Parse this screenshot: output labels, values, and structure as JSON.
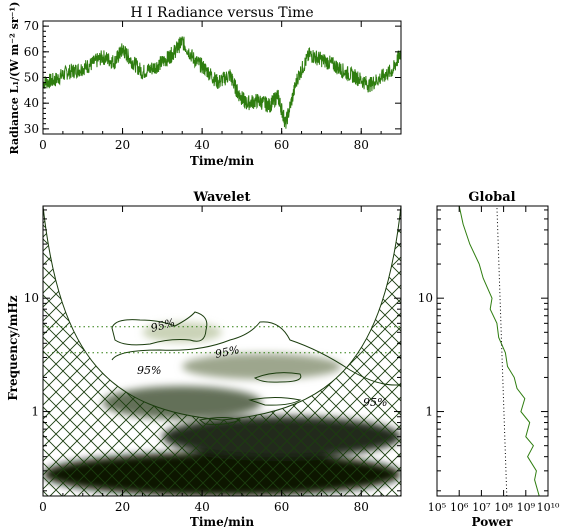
{
  "chart_data": [
    {
      "type": "line",
      "title": "H I Radiance versus Time",
      "xlabel": "Time/min",
      "ylabel": "Radiance L₁/(W m⁻² sr⁻¹)",
      "xlim": [
        0,
        90
      ],
      "ylim": [
        28,
        72
      ],
      "xticks": [
        "0",
        "20",
        "40",
        "60",
        "80"
      ],
      "yticks": [
        "30",
        "40",
        "50",
        "60",
        "70"
      ],
      "color": "#2e7d0f",
      "series": [
        {
          "x": [
            0,
            3,
            6,
            9,
            12,
            15,
            18,
            20,
            22,
            25,
            28,
            31,
            33,
            35,
            38,
            41,
            44,
            47,
            49,
            51,
            54,
            57,
            59,
            61,
            64,
            67,
            70,
            73,
            76,
            79,
            82,
            85,
            88,
            90
          ],
          "values": [
            48,
            49,
            52,
            53,
            55,
            58,
            56,
            61,
            57,
            52,
            54,
            57,
            60,
            64,
            57,
            53,
            48,
            51,
            44,
            40,
            41,
            39,
            43,
            32,
            50,
            59,
            57,
            55,
            52,
            50,
            47,
            50,
            53,
            60
          ]
        }
      ]
    },
    {
      "type": "heatmap",
      "title": "Wavelet",
      "xlabel": "Time/min",
      "ylabel": "Frequency/mHz",
      "xlim": [
        0,
        90
      ],
      "ylim": [
        0.18,
        65
      ],
      "log_y": true,
      "xticks": [
        "0",
        "20",
        "40",
        "60",
        "80"
      ],
      "yticks": [
        "1",
        "10"
      ],
      "significance_label": "95%",
      "color": "#2e7d0f",
      "reference_lines_mHz": [
        5.6,
        3.3
      ],
      "power_bands": [
        {
          "freq_mHz": 0.28,
          "t_start": 0,
          "t_end": 90,
          "level": 1.0
        },
        {
          "freq_mHz": 0.6,
          "t_start": 30,
          "t_end": 90,
          "level": 0.9
        },
        {
          "freq_mHz": 1.2,
          "t_start": 15,
          "t_end": 55,
          "level": 0.6
        },
        {
          "freq_mHz": 2.5,
          "t_start": 35,
          "t_end": 75,
          "level": 0.35
        },
        {
          "freq_mHz": 5.0,
          "t_start": 25,
          "t_end": 45,
          "level": 0.15
        }
      ]
    },
    {
      "type": "line",
      "title": "Global",
      "xlabel": "Power",
      "xlim": [
        100000,
        10000000000
      ],
      "log_x": true,
      "xticks": [
        "10⁵",
        "10⁶",
        "10⁷",
        "10⁸",
        "10⁹",
        "10¹⁰"
      ],
      "yticks": [
        "1",
        "10"
      ],
      "color": "#2e7d0f",
      "series": [
        {
          "freq_mHz": [
            0.18,
            0.25,
            0.3,
            0.4,
            0.5,
            0.6,
            0.8,
            1.0,
            1.3,
            1.6,
            2.0,
            2.5,
            3.3,
            4.5,
            6,
            8,
            10,
            15,
            20,
            30,
            45,
            65
          ],
          "power": [
            4000000000.0,
            2500000000.0,
            3000000000.0,
            1200000000.0,
            2200000000.0,
            1000000000.0,
            1500000000.0,
            600000000.0,
            900000000.0,
            400000000.0,
            300000000.0,
            150000000.0,
            120000000.0,
            60000000.0,
            50000000.0,
            25000000.0,
            30000000.0,
            12000000.0,
            8000000.0,
            3000000.0,
            1500000.0,
            1000000.0
          ]
        },
        {
          "name": "95%",
          "freq_mHz": [
            0.18,
            65
          ],
          "power": [
            140000000.0,
            50000000.0
          ],
          "dotted": true
        }
      ]
    }
  ]
}
